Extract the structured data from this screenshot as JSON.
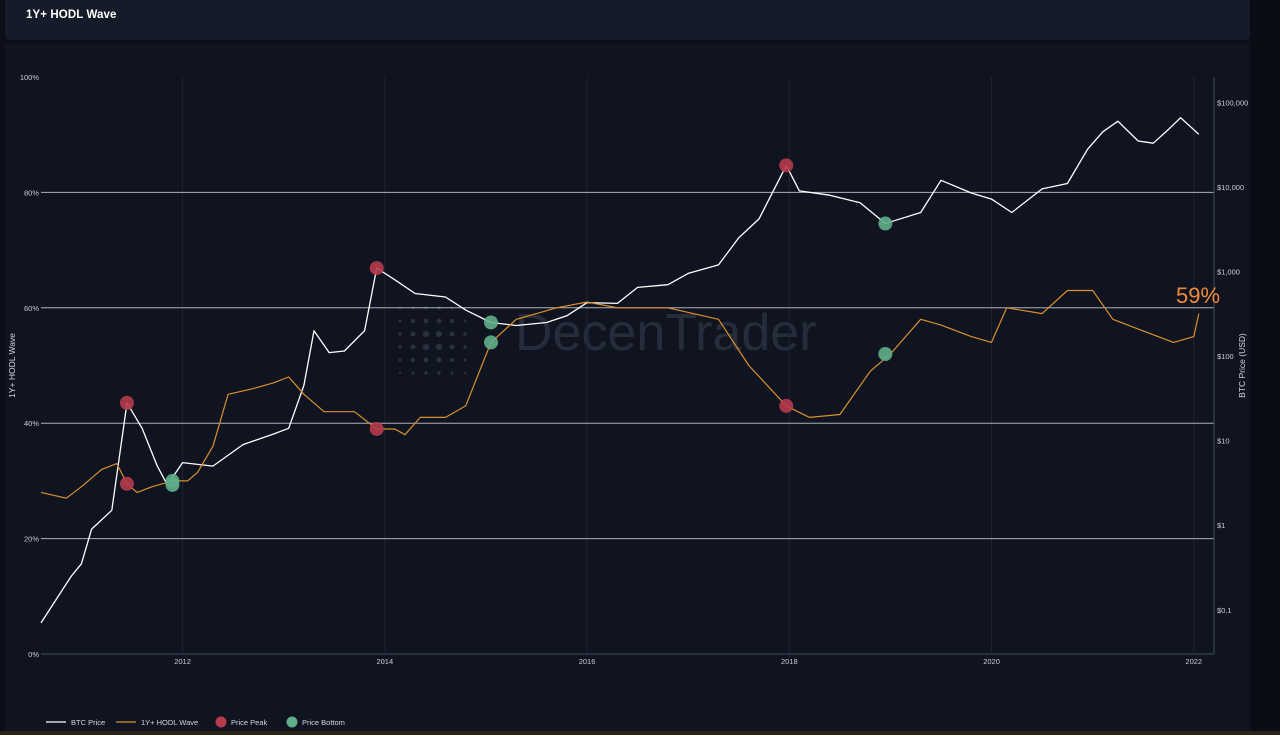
{
  "header": {
    "title": "1Y+ HODL Wave"
  },
  "watermark": {
    "text": "DecenTrader"
  },
  "annotation": {
    "text": "59%",
    "color": "#ef8a3a"
  },
  "colors": {
    "price": "#ffffff",
    "hodl": "#d9902c",
    "peak": "#b53a4c",
    "bottom": "#5fae8a",
    "background": "#101420"
  },
  "chart_data": {
    "type": "line",
    "x_axis": {
      "ticks": [
        "2012",
        "2014",
        "2016",
        "2018",
        "2020",
        "2022"
      ],
      "range": [
        2010.6,
        2022.2
      ]
    },
    "y_left": {
      "title": "1Y+ HODL Wave",
      "ticks": [
        "0%",
        "20%",
        "40%",
        "60%",
        "80%",
        "100%"
      ],
      "range": [
        0,
        100
      ],
      "grid": [
        20,
        40,
        60,
        80
      ]
    },
    "y_right": {
      "title": "BTC Price (USD)",
      "scale": "log",
      "ticks": [
        "$0.1",
        "$1",
        "$10",
        "$100",
        "$1,000",
        "$10,000",
        "$100,000"
      ],
      "range": [
        0.03,
        200000
      ]
    },
    "legend": {
      "placement": "bottom-left",
      "items": [
        {
          "label": "BTC Price",
          "kind": "line",
          "color": "#ffffff"
        },
        {
          "label": "1Y+ HODL Wave",
          "kind": "line",
          "color": "#d9902c"
        },
        {
          "label": "Price Peak",
          "kind": "dot",
          "color": "#b53a4c"
        },
        {
          "label": "Price Bottom",
          "kind": "dot",
          "color": "#5fae8a"
        }
      ]
    },
    "series": [
      {
        "name": "BTC Price",
        "axis": "right",
        "points": [
          [
            2010.6,
            0.07
          ],
          [
            2010.9,
            0.25
          ],
          [
            2011.0,
            0.35
          ],
          [
            2011.1,
            0.9
          ],
          [
            2011.3,
            1.5
          ],
          [
            2011.45,
            28
          ],
          [
            2011.6,
            14
          ],
          [
            2011.75,
            5
          ],
          [
            2011.85,
            3
          ],
          [
            2012.0,
            5.5
          ],
          [
            2012.3,
            5
          ],
          [
            2012.6,
            9
          ],
          [
            2012.9,
            12
          ],
          [
            2013.05,
            14
          ],
          [
            2013.2,
            45
          ],
          [
            2013.3,
            200
          ],
          [
            2013.45,
            110
          ],
          [
            2013.6,
            115
          ],
          [
            2013.8,
            200
          ],
          [
            2013.92,
            1100
          ],
          [
            2014.1,
            800
          ],
          [
            2014.3,
            550
          ],
          [
            2014.6,
            500
          ],
          [
            2014.8,
            350
          ],
          [
            2015.05,
            250
          ],
          [
            2015.3,
            230
          ],
          [
            2015.6,
            250
          ],
          [
            2015.8,
            300
          ],
          [
            2016.0,
            430
          ],
          [
            2016.3,
            420
          ],
          [
            2016.5,
            650
          ],
          [
            2016.8,
            700
          ],
          [
            2017.0,
            950
          ],
          [
            2017.3,
            1200
          ],
          [
            2017.5,
            2500
          ],
          [
            2017.7,
            4200
          ],
          [
            2017.97,
            18000
          ],
          [
            2018.1,
            9000
          ],
          [
            2018.4,
            8000
          ],
          [
            2018.7,
            6500
          ],
          [
            2018.95,
            3700
          ],
          [
            2019.3,
            5000
          ],
          [
            2019.5,
            12000
          ],
          [
            2019.8,
            8500
          ],
          [
            2020.0,
            7200
          ],
          [
            2020.2,
            5000
          ],
          [
            2020.5,
            9500
          ],
          [
            2020.75,
            11000
          ],
          [
            2020.95,
            28000
          ],
          [
            2021.1,
            45000
          ],
          [
            2021.25,
            60000
          ],
          [
            2021.45,
            35000
          ],
          [
            2021.6,
            33000
          ],
          [
            2021.75,
            48000
          ],
          [
            2021.87,
            66000
          ],
          [
            2022.05,
            42000
          ]
        ]
      },
      {
        "name": "1Y+ HODL Wave",
        "axis": "left",
        "points": [
          [
            2010.6,
            28
          ],
          [
            2010.85,
            27
          ],
          [
            2011.0,
            29
          ],
          [
            2011.2,
            32
          ],
          [
            2011.35,
            33
          ],
          [
            2011.45,
            29.5
          ],
          [
            2011.55,
            28
          ],
          [
            2011.7,
            29
          ],
          [
            2011.9,
            30
          ],
          [
            2012.05,
            30
          ],
          [
            2012.15,
            31.5
          ],
          [
            2012.3,
            36
          ],
          [
            2012.45,
            45
          ],
          [
            2012.7,
            46
          ],
          [
            2012.9,
            47
          ],
          [
            2013.05,
            48
          ],
          [
            2013.2,
            45
          ],
          [
            2013.4,
            42
          ],
          [
            2013.7,
            42
          ],
          [
            2013.92,
            39
          ],
          [
            2014.1,
            39
          ],
          [
            2014.2,
            38
          ],
          [
            2014.35,
            41
          ],
          [
            2014.6,
            41
          ],
          [
            2014.8,
            43
          ],
          [
            2015.05,
            54
          ],
          [
            2015.3,
            58
          ],
          [
            2015.7,
            60
          ],
          [
            2016.0,
            61
          ],
          [
            2016.3,
            60
          ],
          [
            2016.8,
            60
          ],
          [
            2017.3,
            58
          ],
          [
            2017.6,
            50
          ],
          [
            2017.97,
            43
          ],
          [
            2018.2,
            41
          ],
          [
            2018.5,
            41.5
          ],
          [
            2018.8,
            49
          ],
          [
            2019.0,
            52
          ],
          [
            2019.3,
            58
          ],
          [
            2019.5,
            57
          ],
          [
            2019.8,
            55
          ],
          [
            2020.0,
            54
          ],
          [
            2020.15,
            60
          ],
          [
            2020.5,
            59
          ],
          [
            2020.75,
            63
          ],
          [
            2021.0,
            63
          ],
          [
            2021.2,
            58
          ],
          [
            2021.5,
            56
          ],
          [
            2021.8,
            54
          ],
          [
            2022.0,
            55
          ],
          [
            2022.05,
            59
          ]
        ]
      }
    ],
    "markers": [
      {
        "type": "Price Peak",
        "x": 2011.45,
        "axis": "right",
        "y": 28
      },
      {
        "type": "Price Peak",
        "x": 2011.45,
        "axis": "left",
        "y": 29.5
      },
      {
        "type": "Price Peak",
        "x": 2013.92,
        "axis": "right",
        "y": 1100
      },
      {
        "type": "Price Peak",
        "x": 2013.92,
        "axis": "left",
        "y": 39
      },
      {
        "type": "Price Peak",
        "x": 2017.97,
        "axis": "right",
        "y": 18000
      },
      {
        "type": "Price Peak",
        "x": 2017.97,
        "axis": "left",
        "y": 43
      },
      {
        "type": "Price Bottom",
        "x": 2011.9,
        "axis": "right",
        "y": 3
      },
      {
        "type": "Price Bottom",
        "x": 2011.9,
        "axis": "left",
        "y": 30
      },
      {
        "type": "Price Bottom",
        "x": 2015.05,
        "axis": "right",
        "y": 250
      },
      {
        "type": "Price Bottom",
        "x": 2015.05,
        "axis": "left",
        "y": 54
      },
      {
        "type": "Price Bottom",
        "x": 2018.95,
        "axis": "right",
        "y": 3700
      },
      {
        "type": "Price Bottom",
        "x": 2018.95,
        "axis": "left",
        "y": 52
      }
    ]
  }
}
